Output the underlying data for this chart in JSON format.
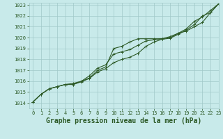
{
  "xlabel": "Graphe pression niveau de la mer (hPa)",
  "xlim": [
    -0.5,
    23
  ],
  "ylim": [
    1013.5,
    1023.2
  ],
  "yticks": [
    1014,
    1015,
    1016,
    1017,
    1018,
    1019,
    1020,
    1021,
    1022,
    1023
  ],
  "xticks": [
    0,
    1,
    2,
    3,
    4,
    5,
    6,
    7,
    8,
    9,
    10,
    11,
    12,
    13,
    14,
    15,
    16,
    17,
    18,
    19,
    20,
    21,
    22,
    23
  ],
  "background_color": "#c8eaea",
  "grid_color": "#a0c8c8",
  "line_color": "#2d5a27",
  "hours": [
    0,
    1,
    2,
    3,
    4,
    5,
    6,
    7,
    8,
    9,
    10,
    11,
    12,
    13,
    14,
    15,
    16,
    17,
    18,
    19,
    20,
    21,
    22,
    23
  ],
  "series1": [
    1014.1,
    1014.8,
    1015.3,
    1015.5,
    1015.7,
    1015.7,
    1016.0,
    1016.3,
    1017.0,
    1017.3,
    1019.0,
    1019.2,
    1019.6,
    1019.9,
    1019.9,
    1019.9,
    1019.9,
    1020.0,
    1020.4,
    1020.6,
    1021.0,
    1021.4,
    1022.3,
    1023.1
  ],
  "series2": [
    1014.1,
    1014.8,
    1015.3,
    1015.5,
    1015.7,
    1015.8,
    1016.0,
    1016.5,
    1017.2,
    1017.5,
    1018.5,
    1018.7,
    1018.9,
    1019.3,
    1019.7,
    1019.8,
    1019.9,
    1020.1,
    1020.4,
    1020.8,
    1021.5,
    1021.9,
    1022.5,
    1023.1
  ],
  "series3": [
    1014.1,
    1014.8,
    1015.3,
    1015.5,
    1015.7,
    1015.7,
    1015.95,
    1016.25,
    1016.85,
    1017.15,
    1017.7,
    1018.0,
    1018.2,
    1018.55,
    1019.2,
    1019.6,
    1019.85,
    1019.95,
    1020.3,
    1020.7,
    1021.2,
    1022.0,
    1022.3,
    1023.1
  ],
  "marker": "+",
  "markersize": 3.5,
  "linewidth": 0.8,
  "xlabel_fontsize": 7,
  "tick_fontsize": 5,
  "line_color_dark": "#1e3d1a",
  "tick_color": "#2d5a27"
}
